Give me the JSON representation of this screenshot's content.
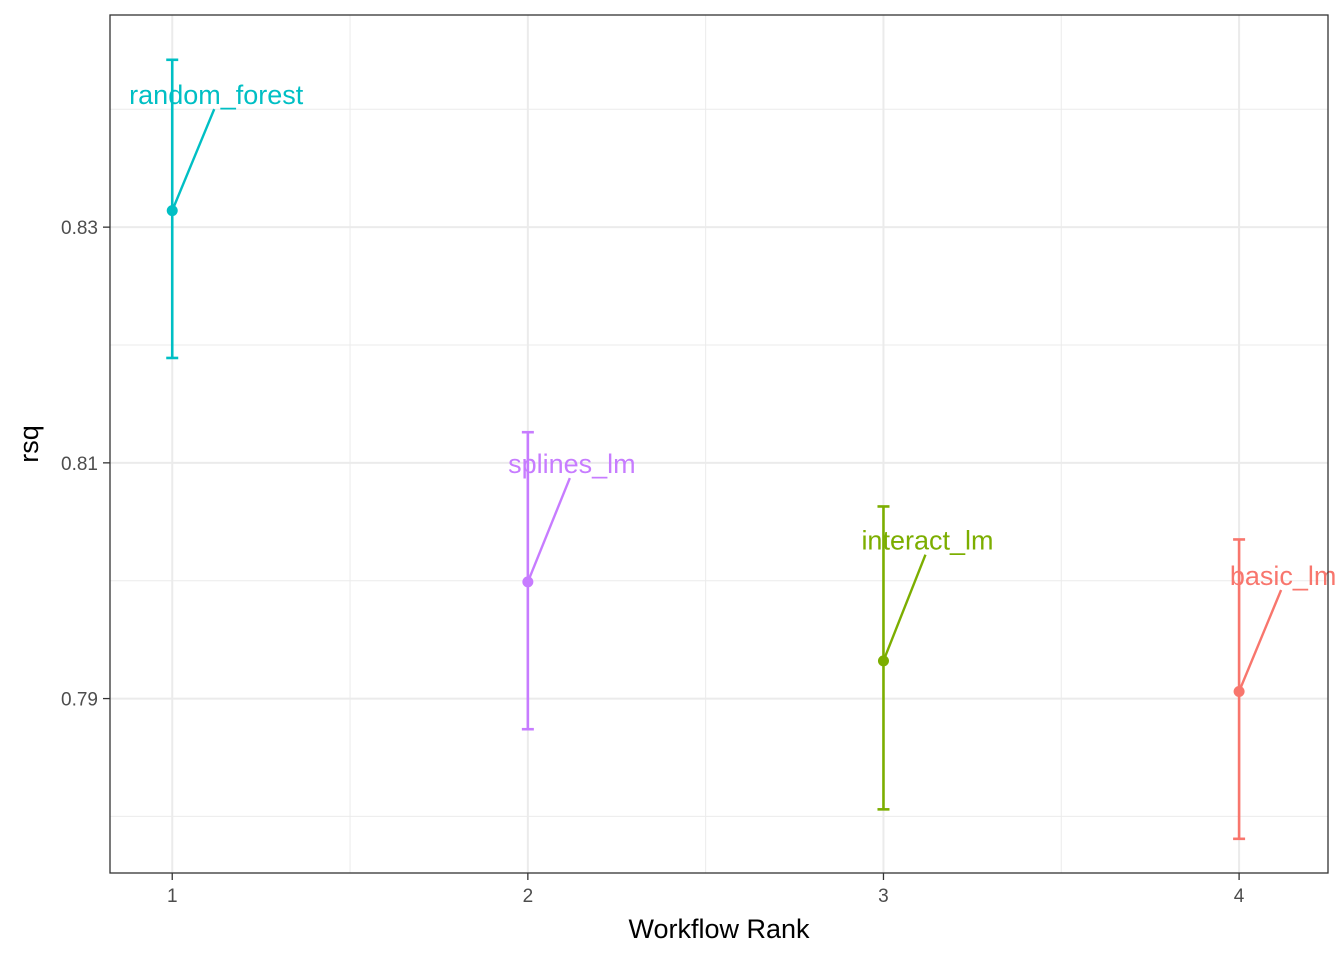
{
  "chart_data": {
    "type": "scatter",
    "title": "",
    "xlabel": "Workflow Rank",
    "ylabel": "rsq",
    "x_ticks": [
      1,
      2,
      3,
      4
    ],
    "x_tick_labels": [
      "1",
      "2",
      "3",
      "4"
    ],
    "y_ticks": [
      0.79,
      0.81,
      0.83
    ],
    "y_tick_labels": [
      "0.79",
      "0.81",
      "0.83"
    ],
    "xlim": [
      0.825,
      4.25
    ],
    "ylim": [
      0.7752,
      0.848
    ],
    "grid": true,
    "legend": "none",
    "series": [
      {
        "name": "random_forest",
        "x": 1,
        "y": 0.8314,
        "ymin": 0.8189,
        "ymax": 0.8442,
        "color": "#00BFC4"
      },
      {
        "name": "splines_lm",
        "x": 2,
        "y": 0.7999,
        "ymin": 0.7874,
        "ymax": 0.8126,
        "color": "#C77CFF"
      },
      {
        "name": "interact_lm",
        "x": 3,
        "y": 0.7932,
        "ymin": 0.7806,
        "ymax": 0.8063,
        "color": "#7CAE00"
      },
      {
        "name": "basic_lm",
        "x": 4,
        "y": 0.7906,
        "ymin": 0.7781,
        "ymax": 0.8035,
        "color": "#F8766D"
      }
    ]
  }
}
